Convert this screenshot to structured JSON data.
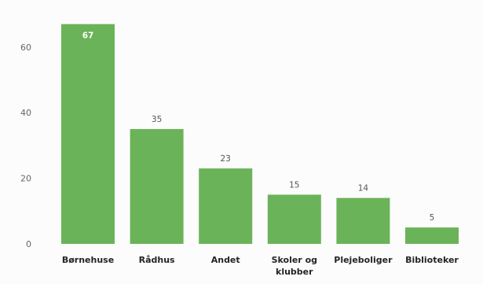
{
  "chart_data": {
    "type": "bar",
    "categories": [
      "Børnehuse",
      "Rådhus",
      "Andet",
      "Skoler og klubber",
      "Plejeboliger",
      "Biblioteker"
    ],
    "category_lines": [
      [
        "Børnehuse"
      ],
      [
        "Rådhus"
      ],
      [
        "Andet"
      ],
      [
        "Skoler og",
        "klubber"
      ],
      [
        "Plejeboliger"
      ],
      [
        "Biblioteker"
      ]
    ],
    "values": [
      67,
      35,
      23,
      15,
      14,
      5
    ],
    "data_labels": [
      "67",
      "35",
      "23",
      "15",
      "14",
      "5"
    ],
    "title": "",
    "xlabel": "",
    "ylabel": "",
    "ylim": [
      0,
      70
    ],
    "yticks": [
      0,
      20,
      40,
      60
    ],
    "grid": false,
    "legend": "none",
    "colors": {
      "bar": "#6ab359",
      "background": "#fcfcfc"
    }
  }
}
